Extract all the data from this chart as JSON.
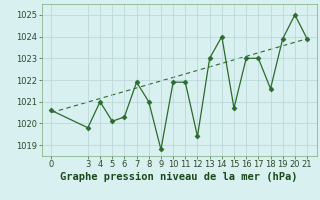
{
  "x": [
    0,
    3,
    4,
    5,
    6,
    7,
    8,
    9,
    10,
    11,
    12,
    13,
    14,
    15,
    16,
    17,
    18,
    19,
    20,
    21
  ],
  "y": [
    1020.6,
    1019.8,
    1021.0,
    1020.1,
    1020.3,
    1021.9,
    1021.0,
    1018.8,
    1021.9,
    1021.9,
    1019.4,
    1023.0,
    1024.0,
    1020.7,
    1023.0,
    1023.0,
    1021.6,
    1023.9,
    1025.0,
    1023.9
  ],
  "trend_x": [
    0,
    21
  ],
  "trend_y": [
    1020.5,
    1023.9
  ],
  "line_color": "#2d6a2d",
  "marker_color": "#2d6a2d",
  "trend_color": "#2d6a2d",
  "bg_color": "#d8f0f0",
  "grid_color": "#b8d4d4",
  "title": "Graphe pression niveau de la mer (hPa)",
  "ylim": [
    1018.5,
    1025.5
  ],
  "yticks": [
    1019,
    1020,
    1021,
    1022,
    1023,
    1024,
    1025
  ],
  "xticks": [
    0,
    3,
    4,
    5,
    6,
    7,
    8,
    9,
    10,
    11,
    12,
    13,
    14,
    15,
    16,
    17,
    18,
    19,
    20,
    21
  ],
  "tick_fontsize": 6,
  "title_fontsize": 7.5
}
